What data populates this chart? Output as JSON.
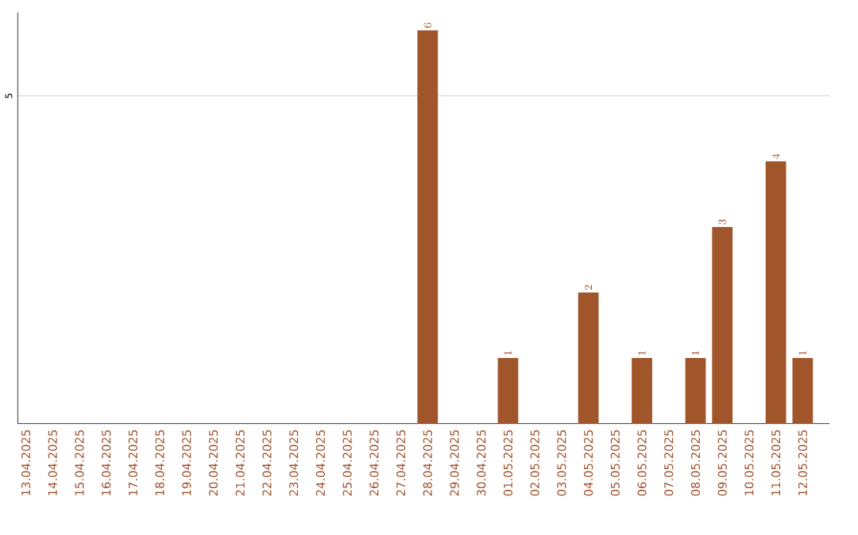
{
  "chart_data": {
    "type": "bar",
    "categories": [
      "13.04.2025",
      "14.04.2025",
      "15.04.2025",
      "16.04.2025",
      "17.04.2025",
      "18.04.2025",
      "19.04.2025",
      "20.04.2025",
      "21.04.2025",
      "22.04.2025",
      "23.04.2025",
      "24.04.2025",
      "25.04.2025",
      "26.04.2025",
      "27.04.2025",
      "28.04.2025",
      "29.04.2025",
      "30.04.2025",
      "01.05.2025",
      "02.05.2025",
      "03.05.2025",
      "04.05.2025",
      "05.05.2025",
      "06.05.2025",
      "07.05.2025",
      "08.05.2025",
      "09.05.2025",
      "10.05.2025",
      "11.05.2025",
      "12.05.2025"
    ],
    "values": [
      null,
      null,
      null,
      null,
      null,
      null,
      null,
      null,
      null,
      null,
      null,
      null,
      null,
      null,
      null,
      6,
      null,
      null,
      1,
      null,
      null,
      2,
      null,
      1,
      null,
      1,
      3,
      null,
      4,
      1
    ],
    "color": "#a0562a",
    "ylim": [
      0,
      6.27
    ],
    "yticks": [
      5
    ],
    "grid": "y",
    "data_labels": true
  }
}
